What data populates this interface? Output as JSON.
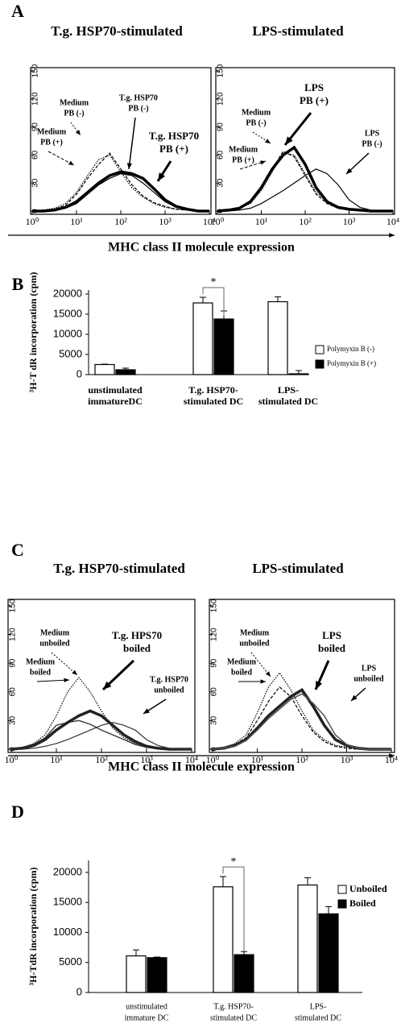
{
  "chart_data": [
    {
      "type": "line",
      "panel_label": "A",
      "title": "T.g. HSP70-stimulated",
      "xlabel": "MHC class II molecule expression",
      "xscale": "log",
      "x": [
        1,
        1.78,
        3.16,
        5.62,
        10,
        17.8,
        31.6,
        56.2,
        100,
        178,
        316,
        562,
        1000,
        1780,
        3160,
        5620,
        10000
      ],
      "xlim": [
        1,
        10000
      ],
      "ylim": [
        0,
        150
      ],
      "xticks": [
        {
          "value": 1,
          "label": "10⁰"
        },
        {
          "value": 10,
          "label": "10¹"
        },
        {
          "value": 100,
          "label": "10²"
        },
        {
          "value": 1000,
          "label": "10³"
        },
        {
          "value": 10000,
          "label": "10⁴"
        }
      ],
      "yticks": [
        0,
        30,
        60,
        90,
        120,
        150
      ],
      "series": [
        {
          "color": "#000000",
          "dash": "dotted",
          "width": 1.2,
          "values": [
            0,
            1,
            3,
            8,
            20,
            38,
            55,
            60,
            42,
            25,
            15,
            8,
            4,
            2,
            1,
            0,
            0
          ]
        },
        {
          "color": "#000000",
          "dash": "dashed",
          "width": 1.2,
          "values": [
            0,
            1,
            2,
            6,
            18,
            35,
            50,
            62,
            45,
            28,
            16,
            9,
            5,
            2,
            1,
            0,
            0
          ]
        },
        {
          "color": "#000000",
          "dash": "solid",
          "width": 1.2,
          "values": [
            0,
            0,
            1,
            3,
            8,
            18,
            28,
            35,
            40,
            38,
            30,
            20,
            10,
            4,
            1,
            0,
            0
          ]
        },
        {
          "color": "#000000",
          "dash": "solid",
          "width": 3.5,
          "values": [
            0,
            0,
            1,
            4,
            10,
            20,
            30,
            38,
            42,
            40,
            35,
            24,
            12,
            5,
            2,
            0,
            0
          ]
        }
      ],
      "annotations": [
        [
          "Medium",
          "PB (-)"
        ],
        [
          "Medium",
          "PB (+)"
        ],
        [
          "T.g. HSP70",
          "PB (-)"
        ],
        [
          "T.g. HSP70",
          "PB (+)"
        ]
      ]
    },
    {
      "type": "line",
      "title": "LPS-stimulated",
      "xscale": "log",
      "x": [
        1,
        1.78,
        3.16,
        5.62,
        10,
        17.8,
        31.6,
        56.2,
        100,
        178,
        316,
        562,
        1000,
        1780,
        3160,
        5620,
        10000
      ],
      "xlim": [
        1,
        10000
      ],
      "ylim": [
        0,
        150
      ],
      "xticks": [
        {
          "value": 1,
          "label": "10⁰"
        },
        {
          "value": 10,
          "label": "10¹"
        },
        {
          "value": 100,
          "label": "10²"
        },
        {
          "value": 1000,
          "label": "10³"
        },
        {
          "value": 10000,
          "label": "10⁴"
        }
      ],
      "yticks": [
        0,
        30,
        60,
        90,
        120,
        150
      ],
      "series": [
        {
          "color": "#000000",
          "dash": "dotted",
          "width": 1.2,
          "values": [
            0,
            1,
            3,
            8,
            22,
            42,
            62,
            60,
            40,
            20,
            10,
            4,
            2,
            1,
            0,
            0,
            0
          ]
        },
        {
          "color": "#000000",
          "dash": "dashed",
          "width": 1.2,
          "values": [
            0,
            1,
            3,
            9,
            24,
            45,
            64,
            58,
            38,
            18,
            8,
            3,
            1,
            0,
            0,
            0,
            0
          ]
        },
        {
          "color": "#000000",
          "dash": "solid",
          "width": 3.5,
          "values": [
            0,
            1,
            3,
            10,
            25,
            45,
            60,
            68,
            50,
            25,
            10,
            4,
            2,
            1,
            0,
            0,
            0
          ]
        },
        {
          "color": "#000000",
          "dash": "solid",
          "width": 1.2,
          "values": [
            0,
            0,
            1,
            3,
            8,
            15,
            22,
            30,
            38,
            45,
            40,
            28,
            12,
            4,
            1,
            0,
            0
          ]
        }
      ],
      "annotations": [
        [
          "LPS",
          "PB (+)"
        ],
        [
          "Medium",
          "PB (-)"
        ],
        [
          "Medium",
          "PB (+)"
        ],
        [
          "LPS",
          "PB (-)"
        ]
      ]
    },
    {
      "type": "bar",
      "panel_label": "B",
      "ylabel": "³H-T dR incorporation (cpm)",
      "categories": [
        [
          "unstimulated",
          "immatureDC"
        ],
        [
          "T.g. HSP70-",
          "stimulated DC"
        ],
        [
          "LPS-",
          "stimulated DC"
        ]
      ],
      "ylim": [
        0,
        21000
      ],
      "yticks": [
        0,
        5000,
        10000,
        15000,
        20000
      ],
      "legend": "right",
      "series": [
        {
          "name": "Polymyxin B (-)",
          "color": "#ffffff",
          "values": [
            2500,
            17800,
            18100
          ],
          "errors": [
            100,
            1400,
            1200
          ]
        },
        {
          "name": "Polymyxin B (+)",
          "color": "#000000",
          "values": [
            1200,
            13800,
            200
          ],
          "errors": [
            400,
            2000,
            800
          ]
        }
      ],
      "annotations": [
        "*"
      ]
    },
    {
      "type": "line",
      "panel_label": "C",
      "title": "T.g. HSP70-stimulated",
      "xlabel": "MHC class II molecule expression",
      "xscale": "log",
      "x": [
        1,
        1.78,
        3.16,
        5.62,
        10,
        17.8,
        31.6,
        56.2,
        100,
        178,
        316,
        562,
        1000,
        1780,
        3160,
        5620,
        10000
      ],
      "xlim": [
        1,
        10000
      ],
      "ylim": [
        0,
        150
      ],
      "xticks": [
        {
          "value": 1,
          "label": "10⁰"
        },
        {
          "value": 10,
          "label": "10¹"
        },
        {
          "value": 100,
          "label": "10²"
        },
        {
          "value": 1000,
          "label": "10³"
        },
        {
          "value": 10000,
          "label": "10⁴"
        }
      ],
      "yticks": [
        0,
        30,
        60,
        90,
        120,
        150
      ],
      "series": [
        {
          "color": "#000000",
          "dash": "dotted",
          "width": 1.2,
          "values": [
            0,
            2,
            6,
            15,
            35,
            60,
            75,
            60,
            40,
            22,
            12,
            6,
            3,
            1,
            0,
            0,
            0
          ]
        },
        {
          "color": "#444444",
          "dash": "solid",
          "width": 1.5,
          "values": [
            0,
            2,
            5,
            12,
            25,
            28,
            30,
            26,
            20,
            15,
            10,
            5,
            2,
            1,
            0,
            0,
            0
          ]
        },
        {
          "color": "#222222",
          "dash": "solid",
          "width": 3.5,
          "values": [
            0,
            1,
            4,
            10,
            20,
            28,
            35,
            40,
            35,
            25,
            15,
            8,
            3,
            1,
            0,
            0,
            0
          ]
        },
        {
          "color": "#333333",
          "dash": "solid",
          "width": 1.2,
          "values": [
            0,
            0,
            1,
            3,
            6,
            10,
            15,
            20,
            25,
            28,
            25,
            20,
            10,
            4,
            1,
            0,
            0
          ]
        }
      ],
      "annotations": [
        [
          "Medium",
          "unboiled"
        ],
        [
          "Medium",
          "boiled"
        ],
        [
          "T.g. HPS70",
          "boiled"
        ],
        [
          "T.g. HSP70",
          "unboiled"
        ]
      ]
    },
    {
      "type": "line",
      "title": "LPS-stimulated",
      "xscale": "log",
      "x": [
        1,
        1.78,
        3.16,
        5.62,
        10,
        17.8,
        31.6,
        56.2,
        100,
        178,
        316,
        562,
        1000,
        1780,
        3160,
        5620,
        10000
      ],
      "xlim": [
        1,
        10000
      ],
      "ylim": [
        0,
        150
      ],
      "xticks": [
        {
          "value": 1,
          "label": "10⁰"
        },
        {
          "value": 10,
          "label": "10¹"
        },
        {
          "value": 100,
          "label": "10²"
        },
        {
          "value": 1000,
          "label": "10³"
        },
        {
          "value": 10000,
          "label": "10⁴"
        }
      ],
      "yticks": [
        0,
        30,
        60,
        90,
        120,
        150
      ],
      "series": [
        {
          "color": "#000000",
          "dash": "dotted",
          "width": 1.2,
          "values": [
            0,
            2,
            6,
            15,
            38,
            65,
            80,
            62,
            40,
            20,
            10,
            4,
            2,
            1,
            0,
            0,
            0
          ]
        },
        {
          "color": "#000000",
          "dash": "dashed",
          "width": 1.2,
          "values": [
            0,
            2,
            5,
            12,
            30,
            50,
            65,
            55,
            35,
            18,
            8,
            3,
            1,
            0,
            0,
            0,
            0
          ]
        },
        {
          "color": "#222222",
          "dash": "solid",
          "width": 3.5,
          "values": [
            0,
            1,
            4,
            10,
            22,
            35,
            45,
            55,
            62,
            45,
            25,
            10,
            4,
            1,
            0,
            0,
            0
          ]
        },
        {
          "color": "#555555",
          "dash": "solid",
          "width": 1.5,
          "values": [
            0,
            1,
            3,
            9,
            20,
            32,
            42,
            52,
            58,
            48,
            35,
            15,
            5,
            1,
            0,
            0,
            0
          ]
        }
      ],
      "annotations": [
        [
          "Medium",
          "unboiled"
        ],
        [
          "Medium",
          "boiled"
        ],
        [
          "LPS",
          "boiled"
        ],
        [
          "LPS",
          "unboiled"
        ]
      ]
    },
    {
      "type": "bar",
      "panel_label": "D",
      "ylabel": "³H-TdR incorporation (cpm)",
      "categories": [
        [
          "unstimulated",
          "immature DC"
        ],
        [
          "T.g. HSP70-",
          "stimulated DC"
        ],
        [
          "LPS-",
          "stimulated DC"
        ]
      ],
      "ylim": [
        0,
        22000
      ],
      "yticks": [
        0,
        5000,
        10000,
        15000,
        20000
      ],
      "legend": "right",
      "series": [
        {
          "name": "Unboiled",
          "color": "#ffffff",
          "values": [
            6100,
            17600,
            17900
          ],
          "errors": [
            1000,
            1700,
            1200
          ]
        },
        {
          "name": "Boiled",
          "color": "#000000",
          "values": [
            5800,
            6300,
            13100
          ],
          "errors": [
            100,
            500,
            1200
          ]
        }
      ],
      "annotations": [
        "*"
      ]
    }
  ]
}
